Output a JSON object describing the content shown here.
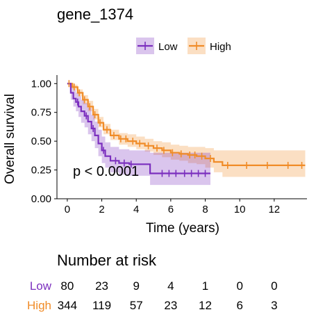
{
  "chart_data": {
    "type": "line",
    "title": "gene_1374",
    "xlabel": "Time (years)",
    "ylabel": "Overall survival",
    "xlim": [
      -0.6,
      13.9
    ],
    "ylim": [
      0,
      1.05
    ],
    "x_ticks": [
      0,
      2,
      4,
      6,
      8,
      10,
      12
    ],
    "y_ticks": [
      0,
      0.25,
      0.5,
      0.75,
      1.0
    ],
    "x_tick_labels": [
      "0",
      "2",
      "4",
      "6",
      "8",
      "10",
      "12"
    ],
    "y_tick_labels": [
      "0.00",
      "0.25",
      "0.50",
      "0.75",
      "1.00"
    ],
    "legend_position": "top",
    "annotation": "p < 0.0001",
    "series": [
      {
        "name": "Low",
        "color": "#7B2FBE",
        "x": [
          0,
          0.2,
          0.35,
          0.5,
          0.65,
          0.8,
          1.0,
          1.2,
          1.4,
          1.6,
          1.8,
          2.0,
          2.2,
          2.5,
          3.0,
          3.6,
          4.0,
          4.5,
          4.8,
          6.5,
          8.3
        ],
        "y": [
          1.0,
          0.92,
          0.87,
          0.84,
          0.8,
          0.76,
          0.72,
          0.67,
          0.61,
          0.55,
          0.48,
          0.42,
          0.37,
          0.33,
          0.31,
          0.3,
          0.3,
          0.3,
          0.22,
          0.22,
          0.22
        ],
        "lower": [
          1.0,
          0.86,
          0.8,
          0.76,
          0.71,
          0.66,
          0.62,
          0.56,
          0.5,
          0.44,
          0.37,
          0.31,
          0.27,
          0.23,
          0.21,
          0.2,
          0.2,
          0.2,
          0.12,
          0.12,
          0.12
        ],
        "upper": [
          1.0,
          0.98,
          0.95,
          0.92,
          0.89,
          0.86,
          0.83,
          0.79,
          0.73,
          0.67,
          0.6,
          0.54,
          0.49,
          0.45,
          0.43,
          0.42,
          0.42,
          0.42,
          0.4,
          0.4,
          0.4
        ],
        "censor_x": [
          0.6,
          1.1,
          1.5,
          2.1,
          2.8,
          3.3,
          3.7,
          5.5,
          5.9,
          6.3,
          6.8,
          7.2,
          7.6,
          8.0
        ]
      },
      {
        "name": "High",
        "color": "#F08C28",
        "x": [
          0,
          0.3,
          0.6,
          0.9,
          1.2,
          1.5,
          1.8,
          2.1,
          2.5,
          3.0,
          3.5,
          4.0,
          4.5,
          5.0,
          5.5,
          6.0,
          6.5,
          7.0,
          7.5,
          8.0,
          8.5,
          9.0,
          13.8
        ],
        "y": [
          1.0,
          0.97,
          0.92,
          0.86,
          0.8,
          0.73,
          0.66,
          0.6,
          0.55,
          0.52,
          0.5,
          0.48,
          0.46,
          0.44,
          0.42,
          0.4,
          0.39,
          0.38,
          0.37,
          0.35,
          0.32,
          0.29,
          0.29
        ],
        "lower": [
          1.0,
          0.95,
          0.89,
          0.82,
          0.76,
          0.69,
          0.62,
          0.56,
          0.51,
          0.47,
          0.45,
          0.43,
          0.41,
          0.38,
          0.36,
          0.34,
          0.33,
          0.31,
          0.3,
          0.27,
          0.23,
          0.19,
          0.19
        ],
        "upper": [
          1.0,
          0.99,
          0.95,
          0.9,
          0.85,
          0.78,
          0.71,
          0.65,
          0.6,
          0.57,
          0.56,
          0.54,
          0.52,
          0.5,
          0.49,
          0.47,
          0.46,
          0.45,
          0.45,
          0.44,
          0.42,
          0.42,
          0.42
        ],
        "censor_x": [
          0.1,
          0.4,
          0.7,
          1.0,
          1.3,
          1.6,
          1.9,
          2.3,
          2.7,
          3.1,
          3.4,
          3.8,
          4.2,
          4.7,
          5.2,
          5.6,
          6.1,
          6.6,
          7.1,
          7.4,
          7.8,
          8.3,
          9.3,
          10.4,
          11.6,
          12.8,
          13.6
        ]
      }
    ]
  },
  "risk_table": {
    "title": "Number at risk",
    "rows": [
      {
        "label": "Low",
        "color": "#7B2FBE",
        "values": [
          "80",
          "23",
          "9",
          "4",
          "1",
          "0",
          "0"
        ]
      },
      {
        "label": "High",
        "color": "#F08C28",
        "values": [
          "344",
          "119",
          "57",
          "23",
          "12",
          "6",
          "3"
        ]
      }
    ]
  }
}
